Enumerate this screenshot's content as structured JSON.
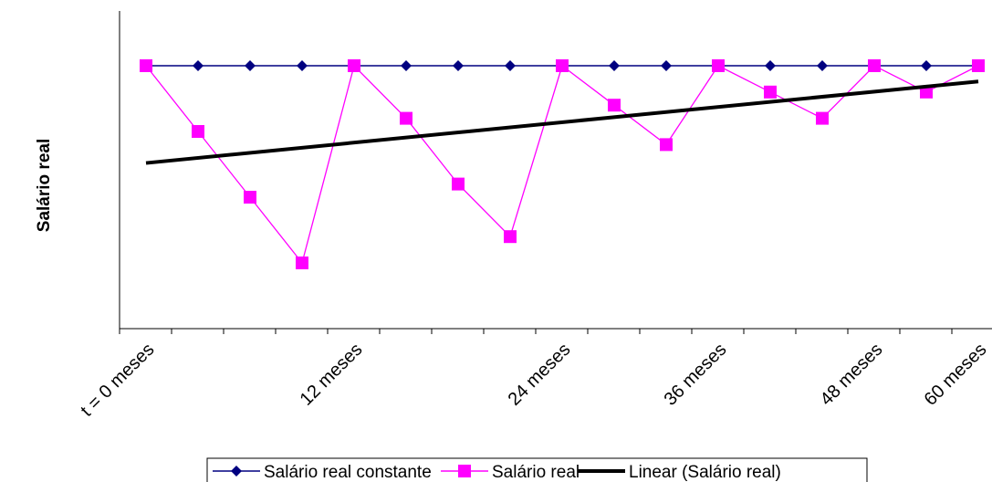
{
  "chart_data": {
    "type": "line",
    "title": "",
    "xlabel": "",
    "ylabel": "Salário real",
    "x": [
      0,
      3,
      6,
      9,
      12,
      15,
      18,
      21,
      24,
      27,
      30,
      33,
      36,
      39,
      42,
      45,
      48,
      51,
      54,
      57,
      60
    ],
    "x_tick_labels": [
      {
        "x": 0,
        "label": "t = 0 meses"
      },
      {
        "x": 12,
        "label": "12 meses"
      },
      {
        "x": 24,
        "label": "24 meses"
      },
      {
        "x": 36,
        "label": "36 meses"
      },
      {
        "x": 48,
        "label": "48 meses"
      },
      {
        "x": 60,
        "label": "60 meses"
      }
    ],
    "ylim": [
      0,
      1.05
    ],
    "y_axis_labels_shown": false,
    "grid": false,
    "series": [
      {
        "name": "Salário real constante",
        "marker": "diamond",
        "color": "#000080",
        "x": [
          0,
          4,
          8,
          12,
          16,
          20,
          24,
          28,
          32,
          36,
          40,
          44,
          48,
          52,
          56,
          60,
          64
        ],
        "values": [
          1,
          1,
          1,
          1,
          1,
          1,
          1,
          1,
          1,
          1,
          1,
          1,
          1,
          1,
          1,
          1,
          1
        ]
      },
      {
        "name": "Salário real",
        "marker": "square",
        "color": "#FF00FF",
        "x": [
          0,
          4,
          8,
          12,
          16,
          20,
          24,
          28,
          32,
          36,
          40,
          44,
          48,
          52,
          56,
          60,
          64
        ],
        "values": [
          1,
          0.75,
          0.5,
          0.25,
          1,
          0.8,
          0.55,
          0.35,
          1,
          0.85,
          0.7,
          1,
          0.9,
          0.8,
          1,
          0.9,
          1
        ]
      },
      {
        "name": "Linear (Salário real)",
        "marker": "none",
        "color": "#000000",
        "x": [
          0,
          64
        ],
        "values": [
          0.63,
          0.94
        ]
      }
    ],
    "legend": {
      "placement": "bottom",
      "entries": [
        "Salário real constante",
        "Salário real",
        "Linear (Salário real)"
      ]
    }
  }
}
